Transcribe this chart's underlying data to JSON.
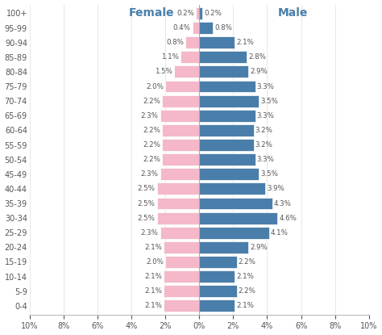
{
  "age_groups": [
    "100+",
    "95-99",
    "90-94",
    "85-89",
    "80-84",
    "75-79",
    "70-74",
    "65-69",
    "60-64",
    "55-59",
    "50-54",
    "45-49",
    "40-44",
    "35-39",
    "30-34",
    "25-29",
    "20-24",
    "15-19",
    "10-14",
    "5-9",
    "0-4"
  ],
  "female": [
    0.2,
    0.4,
    0.8,
    1.1,
    1.5,
    2.0,
    2.2,
    2.3,
    2.2,
    2.2,
    2.2,
    2.3,
    2.5,
    2.5,
    2.5,
    2.3,
    2.1,
    2.0,
    2.1,
    2.1,
    2.1
  ],
  "male": [
    0.2,
    0.8,
    2.1,
    2.8,
    2.9,
    3.3,
    3.5,
    3.3,
    3.2,
    3.2,
    3.3,
    3.5,
    3.9,
    4.3,
    4.6,
    4.1,
    2.9,
    2.2,
    2.1,
    2.2,
    2.1
  ],
  "female_color": "#f4b8c8",
  "male_color": "#4a7eaa",
  "background_color": "#ffffff",
  "label_female": "Female",
  "label_male": "Male",
  "label_color": "#4a7eaa",
  "bar_height": 0.82,
  "tick_labels": [
    "10%",
    "8%",
    "6%",
    "4%",
    "2%",
    "0%",
    "2%",
    "4%",
    "6%",
    "8%",
    "10%"
  ],
  "tick_vals": [
    -10,
    -8,
    -6,
    -4,
    -2,
    0,
    2,
    4,
    6,
    8,
    10
  ],
  "xlim": 10,
  "text_color": "#555555",
  "grid_color": "#dddddd",
  "spine_color": "#bbbbbb"
}
